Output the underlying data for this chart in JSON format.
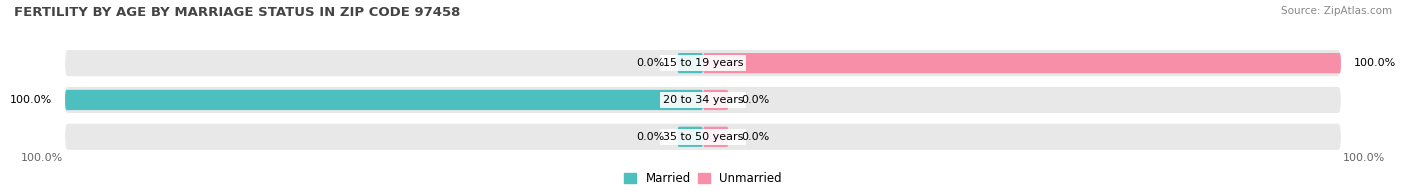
{
  "title": "FERTILITY BY AGE BY MARRIAGE STATUS IN ZIP CODE 97458",
  "source": "Source: ZipAtlas.com",
  "categories": [
    "15 to 19 years",
    "20 to 34 years",
    "35 to 50 years"
  ],
  "married": [
    0.0,
    100.0,
    0.0
  ],
  "unmarried": [
    100.0,
    0.0,
    0.0
  ],
  "married_color": "#4dbfbf",
  "unmarried_color": "#f88fa8",
  "bg_row_color": "#e8e8e8",
  "bar_height": 0.55,
  "stub_val": 4.0,
  "title_fontsize": 9.5,
  "label_fontsize": 8.0,
  "tick_fontsize": 8.0,
  "source_fontsize": 7.5,
  "legend_fontsize": 8.5,
  "bottom_labels": [
    "100.0%",
    "100.0%"
  ]
}
